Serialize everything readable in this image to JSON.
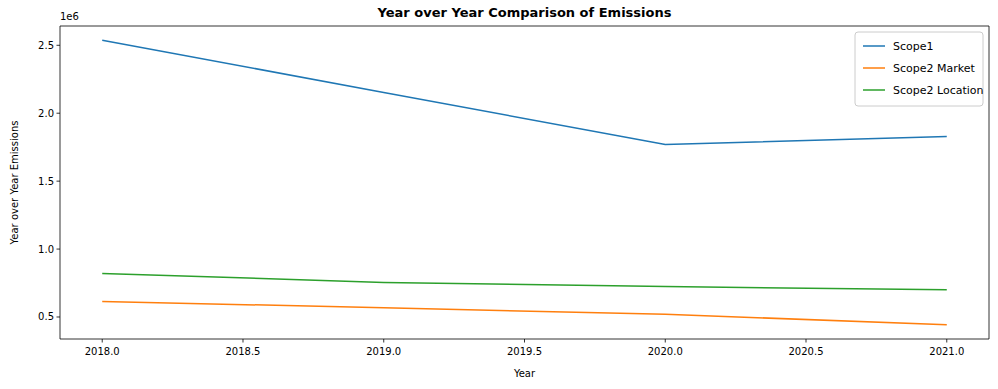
{
  "chart_data": {
    "type": "line",
    "title": "Year over Year Comparison of Emissions",
    "xlabel": "Year",
    "ylabel": "Year over Year Emissions",
    "y_multiplier": "1e6",
    "x": [
      2018,
      2019,
      2020,
      2021
    ],
    "series": [
      {
        "name": "Scope1",
        "color": "#1f77b4",
        "values": [
          2.537,
          2.153,
          1.769,
          1.829
        ]
      },
      {
        "name": "Scope2 Market",
        "color": "#ff7f0e",
        "values": [
          0.614,
          0.568,
          0.52,
          0.443
        ]
      },
      {
        "name": "Scope2 Location",
        "color": "#2ca02c",
        "values": [
          0.821,
          0.754,
          0.724,
          0.701
        ]
      }
    ],
    "xlim": [
      2017.85,
      2021.15
    ],
    "xticks": [
      {
        "value": 2018,
        "label": "2018.0"
      },
      {
        "value": 2018.5,
        "label": "2018.5"
      },
      {
        "value": 2019,
        "label": "2019.0"
      },
      {
        "value": 2019.5,
        "label": "2019.5"
      },
      {
        "value": 2020,
        "label": "2020.0"
      },
      {
        "value": 2020.5,
        "label": "2020.5"
      },
      {
        "value": 2021,
        "label": "2021.0"
      }
    ],
    "ylim": [
      0.338,
      2.642
    ],
    "yticks": [
      0.5,
      {
        "value": 1,
        "label": "1.0"
      },
      1.5,
      {
        "value": 2,
        "label": "2.0"
      },
      2.5
    ],
    "grid": false,
    "legend": "upper-right"
  }
}
